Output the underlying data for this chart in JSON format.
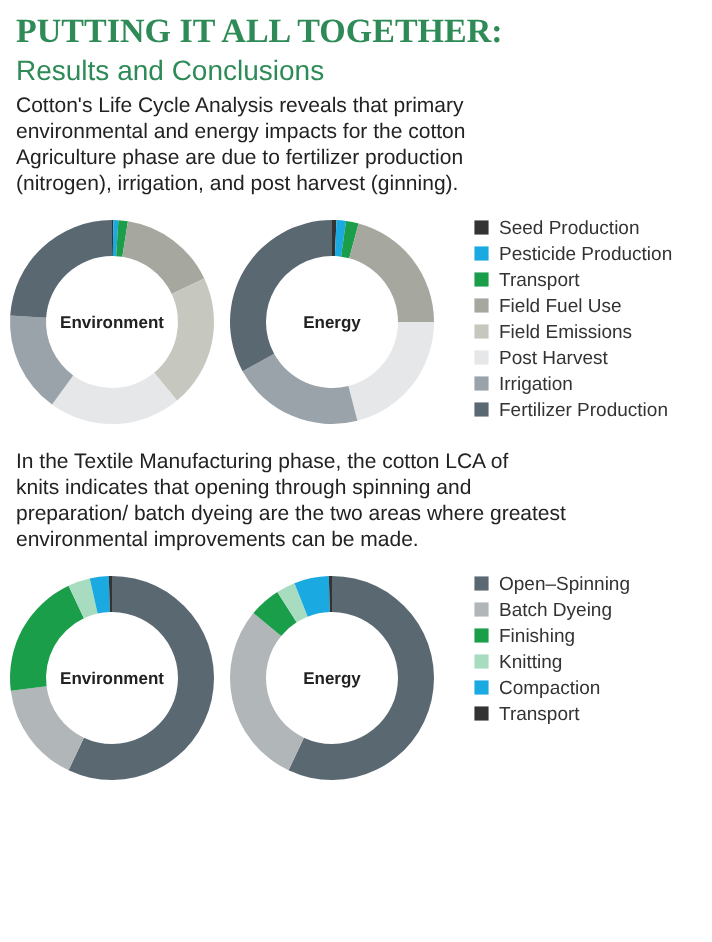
{
  "chart_data": [
    {
      "type": "donut",
      "annotations": [
        "PUTTING IT ALL TOGETHER:",
        "Results and Conclusions",
        "Cotton's Life Cycle Analysis reveals that primary environmental and energy impacts for the cotton Agriculture phase are due to fertilizer production (nitrogen), irrigation, and post harvest (ginning)."
      ],
      "legend": "right",
      "categories": [
        "Seed Production",
        "Pesticide Production",
        "Transport",
        "Field Fuel Use",
        "Field Emissions",
        "Post Harvest",
        "Irrigation",
        "Fertilizer Production"
      ],
      "colors": [
        "#333333",
        "#1aa9e1",
        "#1a9e4a",
        "#a6a89f",
        "#c6c8c0",
        "#e6e7e8",
        "#9aa3a9",
        "#5a6872"
      ],
      "series": [
        {
          "name": "Environment",
          "values": [
            0.2,
            0.8,
            1.5,
            15.5,
            21,
            21,
            16,
            24
          ]
        },
        {
          "name": "Energy",
          "values": [
            0.7,
            1.5,
            2,
            20.8,
            0,
            21,
            21,
            33
          ]
        }
      ]
    },
    {
      "type": "donut",
      "annotations": [
        "In the Textile Manufacturing phase, the cotton LCA of knits indicates that opening through spinning and preparation/ batch dyeing are the two areas where greatest environmental improvements can be made."
      ],
      "legend": "right",
      "categories": [
        "Open–Spinning",
        "Batch Dyeing",
        "Finishing",
        "Knitting",
        "Compaction",
        "Transport"
      ],
      "colors": [
        "#5a6872",
        "#b1b6b9",
        "#1a9e4a",
        "#a8dcc0",
        "#1aa9e1",
        "#333333"
      ],
      "series": [
        {
          "name": "Environment",
          "values": [
            57,
            16,
            20,
            3.5,
            3,
            0.5
          ]
        },
        {
          "name": "Energy",
          "values": [
            57,
            29,
            5,
            3,
            5.5,
            0.5
          ]
        }
      ]
    }
  ]
}
